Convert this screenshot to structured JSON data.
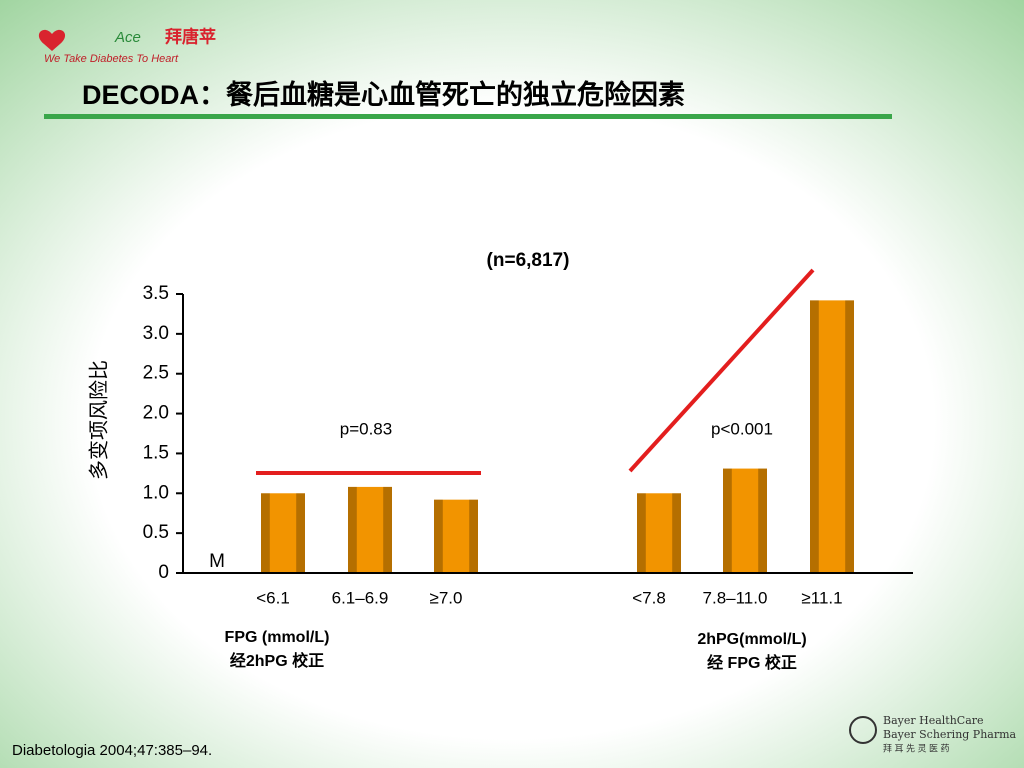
{
  "header": {
    "logo_ace": "Ace",
    "logo_brand": "拜唐苹",
    "logo_tagline": "We Take Diabetes To Heart",
    "title": "DECODA：餐后血糖是心血管死亡的独立危险因素"
  },
  "chart_data": {
    "type": "bar",
    "title": "(n=6,817)",
    "y_label": "多变项风险比",
    "categories": [
      "<6.1",
      "6.1–6.9",
      "≥7.0",
      "<7.8",
      "7.8–11.0",
      "≥11.1"
    ],
    "values": [
      1.0,
      1.08,
      0.92,
      1.0,
      1.31,
      3.42
    ],
    "color": "#f29400",
    "ylim": [
      0,
      3.5
    ],
    "yticks": [
      0,
      0.5,
      {
        "value": 1,
        "label": "1.0"
      },
      1.5,
      {
        "value": 2,
        "label": "2.0"
      },
      2.5,
      {
        "value": 3,
        "label": "3.0"
      },
      3.5
    ],
    "annotations": {
      "origin_marker": "M",
      "p_fpg": "p=0.83",
      "p_2hpg": "p<0.001"
    },
    "group_labels": [
      {
        "title": "FPG (mmol/L)",
        "note": "经2hPG 校正"
      },
      {
        "title": "2hPG(mmol/L)",
        "note": "经 FPG 校正"
      }
    ]
  },
  "footer": {
    "citation": "Diabetologia 2004;47:385–94.",
    "company_1": "Bayer HealthCare",
    "company_2": "Bayer Schering Pharma",
    "company_cn": "拜 耳 先 灵 医 药"
  }
}
